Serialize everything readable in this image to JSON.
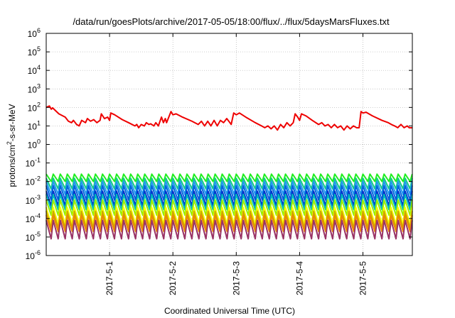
{
  "chart_data": {
    "type": "line",
    "title": "/data/run/goesPlots/archive/2017-05-05/18:00/flux/../flux/5daysMarsFluxes.txt",
    "xlabel": "Coordinated Universal Time (UTC)",
    "ylabel_parts": {
      "pre": "protons/cm",
      "sup": "2",
      "post": "-s-sr-MeV"
    },
    "y_scale": "log",
    "ylim": [
      1e-06,
      1000000.0
    ],
    "y_ticks": [
      {
        "exp": -6,
        "label_base": "10",
        "label_exp": "-6"
      },
      {
        "exp": -5,
        "label_base": "10",
        "label_exp": "-5"
      },
      {
        "exp": -4,
        "label_base": "10",
        "label_exp": "-4"
      },
      {
        "exp": -3,
        "label_base": "10",
        "label_exp": "-3"
      },
      {
        "exp": -2,
        "label_base": "10",
        "label_exp": "-2"
      },
      {
        "exp": -1,
        "label_base": "10",
        "label_exp": "-1"
      },
      {
        "exp": 0,
        "label_base": "10",
        "label_exp": "0"
      },
      {
        "exp": 1,
        "label_base": "10",
        "label_exp": "1"
      },
      {
        "exp": 2,
        "label_base": "10",
        "label_exp": "2"
      },
      {
        "exp": 3,
        "label_base": "10",
        "label_exp": "3"
      },
      {
        "exp": 4,
        "label_base": "10",
        "label_exp": "4"
      },
      {
        "exp": 5,
        "label_base": "10",
        "label_exp": "5"
      },
      {
        "exp": 6,
        "label_base": "10",
        "label_exp": "6"
      }
    ],
    "x_ticks": [
      "2017-5-1",
      "2017-5-2",
      "2017-5-3",
      "2017-5-4",
      "2017-5-5"
    ],
    "x_tick_positions": [
      1,
      2,
      3,
      4,
      5
    ],
    "xlim": [
      0.0,
      5.78
    ],
    "grid": true,
    "legend": "none",
    "series": [
      {
        "color": "#ee0000",
        "points": [
          [
            0.0,
            100
          ],
          [
            0.05,
            120
          ],
          [
            0.08,
            80
          ],
          [
            0.1,
            95
          ],
          [
            0.2,
            45
          ],
          [
            0.3,
            30
          ],
          [
            0.35,
            18
          ],
          [
            0.4,
            15
          ],
          [
            0.43,
            20
          ],
          [
            0.48,
            12
          ],
          [
            0.52,
            10
          ],
          [
            0.56,
            20
          ],
          [
            0.62,
            15
          ],
          [
            0.65,
            25
          ],
          [
            0.7,
            18
          ],
          [
            0.75,
            22
          ],
          [
            0.8,
            15
          ],
          [
            0.85,
            20
          ],
          [
            0.87,
            45
          ],
          [
            0.92,
            25
          ],
          [
            0.97,
            30
          ],
          [
            1.0,
            20
          ],
          [
            1.02,
            50
          ],
          [
            1.08,
            40
          ],
          [
            1.2,
            22
          ],
          [
            1.3,
            15
          ],
          [
            1.4,
            10
          ],
          [
            1.43,
            12
          ],
          [
            1.46,
            8
          ],
          [
            1.5,
            12
          ],
          [
            1.55,
            10
          ],
          [
            1.58,
            15
          ],
          [
            1.62,
            12
          ],
          [
            1.65,
            13
          ],
          [
            1.7,
            10
          ],
          [
            1.73,
            15
          ],
          [
            1.77,
            10
          ],
          [
            1.82,
            30
          ],
          [
            1.85,
            15
          ],
          [
            1.88,
            25
          ],
          [
            1.9,
            15
          ],
          [
            1.97,
            60
          ],
          [
            2.0,
            40
          ],
          [
            2.05,
            45
          ],
          [
            2.15,
            30
          ],
          [
            2.3,
            18
          ],
          [
            2.4,
            12
          ],
          [
            2.45,
            18
          ],
          [
            2.5,
            10
          ],
          [
            2.55,
            18
          ],
          [
            2.6,
            10
          ],
          [
            2.65,
            20
          ],
          [
            2.7,
            10
          ],
          [
            2.75,
            20
          ],
          [
            2.8,
            15
          ],
          [
            2.85,
            25
          ],
          [
            2.9,
            15
          ],
          [
            2.92,
            12
          ],
          [
            2.96,
            50
          ],
          [
            3.0,
            40
          ],
          [
            3.05,
            50
          ],
          [
            3.15,
            30
          ],
          [
            3.3,
            15
          ],
          [
            3.4,
            10
          ],
          [
            3.45,
            8
          ],
          [
            3.5,
            10
          ],
          [
            3.55,
            7
          ],
          [
            3.6,
            10
          ],
          [
            3.65,
            6
          ],
          [
            3.7,
            12
          ],
          [
            3.75,
            8
          ],
          [
            3.8,
            15
          ],
          [
            3.85,
            10
          ],
          [
            3.9,
            15
          ],
          [
            3.93,
            45
          ],
          [
            3.97,
            30
          ],
          [
            4.0,
            20
          ],
          [
            4.03,
            45
          ],
          [
            4.1,
            35
          ],
          [
            4.2,
            20
          ],
          [
            4.3,
            12
          ],
          [
            4.35,
            15
          ],
          [
            4.4,
            10
          ],
          [
            4.45,
            12
          ],
          [
            4.5,
            8
          ],
          [
            4.55,
            12
          ],
          [
            4.6,
            8
          ],
          [
            4.65,
            10
          ],
          [
            4.7,
            6
          ],
          [
            4.75,
            10
          ],
          [
            4.8,
            7
          ],
          [
            4.85,
            10
          ],
          [
            4.9,
            8
          ],
          [
            4.94,
            8
          ],
          [
            4.97,
            60
          ],
          [
            5.0,
            50
          ],
          [
            5.05,
            55
          ],
          [
            5.15,
            35
          ],
          [
            5.3,
            20
          ],
          [
            5.4,
            15
          ],
          [
            5.45,
            12
          ],
          [
            5.5,
            10
          ],
          [
            5.55,
            8
          ],
          [
            5.6,
            12
          ],
          [
            5.65,
            8
          ],
          [
            5.7,
            10
          ],
          [
            5.73,
            8
          ],
          [
            5.78,
            8
          ]
        ]
      },
      {
        "color": "#22ee22",
        "sawtooth": true,
        "hi": 0.025,
        "lo": 0.01
      },
      {
        "color": "#11cc88",
        "sawtooth": true,
        "hi": 0.015,
        "lo": 0.004
      },
      {
        "color": "#2299ee",
        "sawtooth": true,
        "hi": 0.01,
        "lo": 0.002
      },
      {
        "color": "#0066dd",
        "sawtooth": true,
        "hi": 0.006,
        "lo": 0.001
      },
      {
        "color": "#0033cc",
        "sawtooth": true,
        "hi": 0.003,
        "lo": 0.0005
      },
      {
        "color": "#00bbbb",
        "sawtooth": true,
        "hi": 0.002,
        "lo": 0.0003
      },
      {
        "color": "#99ee00",
        "sawtooth": true,
        "hi": 0.001,
        "lo": 0.00015
      },
      {
        "color": "#ffff00",
        "sawtooth": true,
        "hi": 0.0004,
        "lo": 5e-05
      },
      {
        "color": "#ccaa00",
        "sawtooth": true,
        "hi": 0.00025,
        "lo": 3e-05
      },
      {
        "color": "#ee8800",
        "sawtooth": true,
        "hi": 0.00015,
        "lo": 2e-05
      },
      {
        "color": "#993366",
        "sawtooth": true,
        "hi": 8e-05,
        "lo": 8e-06
      }
    ]
  }
}
